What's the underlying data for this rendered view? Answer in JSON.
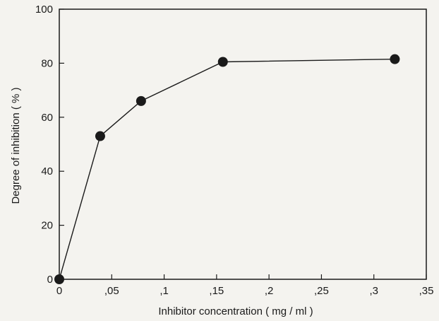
{
  "chart_data": {
    "type": "line",
    "title": "",
    "xlabel": "Inhibitor concentration ( mg / ml )",
    "ylabel": "Degree of inhibition  ( % )",
    "xlim": [
      0,
      0.35
    ],
    "ylim": [
      0,
      100
    ],
    "x_ticks": [
      0,
      0.05,
      0.1,
      0.15,
      0.2,
      0.25,
      0.3,
      0.35
    ],
    "x_tick_labels": [
      "0",
      ",05",
      ",1",
      ",15",
      ",2",
      ",25",
      ",3",
      ",35"
    ],
    "y_ticks": [
      0,
      20,
      40,
      60,
      80,
      100
    ],
    "y_tick_labels": [
      "0",
      "20",
      "40",
      "60",
      "80",
      "100"
    ],
    "grid": false,
    "legend": "none",
    "series": [
      {
        "x": [
          0,
          0.039,
          0.078,
          0.156,
          0.32
        ],
        "y": [
          0,
          53,
          66,
          80.5,
          81.5
        ],
        "color": "#1a1a1a"
      }
    ]
  }
}
